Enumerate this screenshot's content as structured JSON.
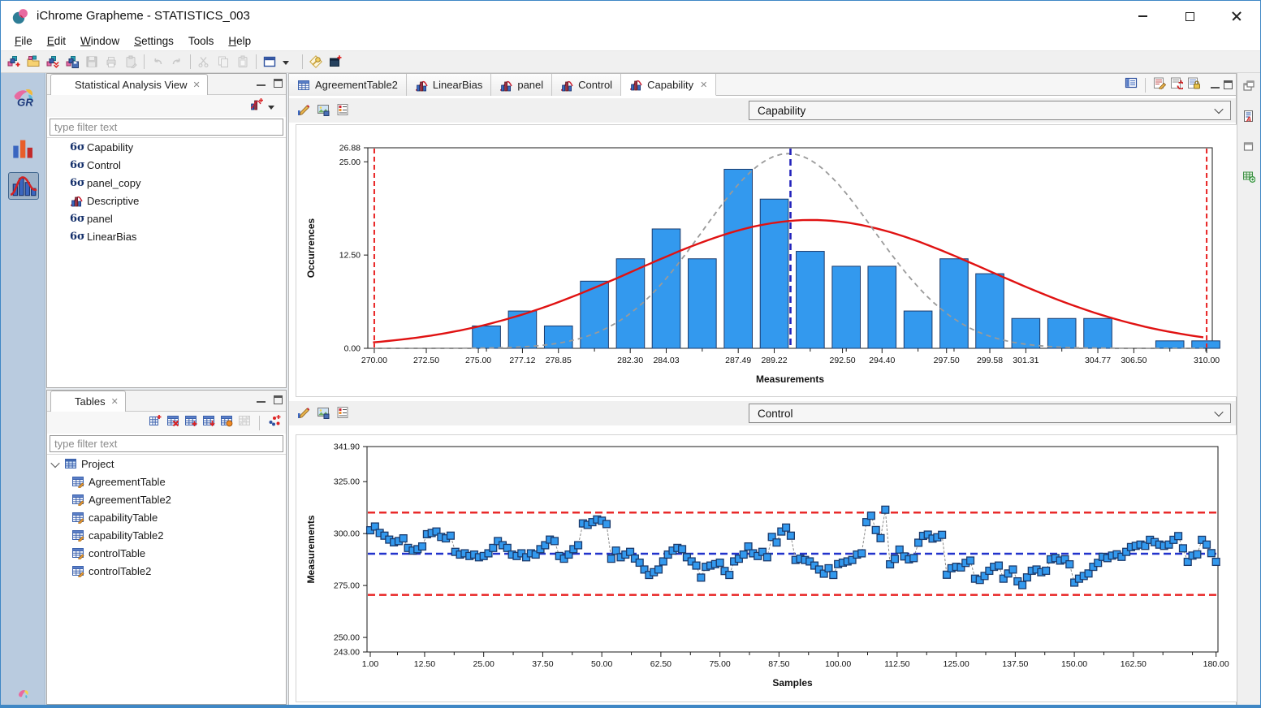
{
  "window": {
    "title": "iChrome Grapheme - STATISTICS_003"
  },
  "menu": {
    "items": [
      {
        "label": "File",
        "underline": 0
      },
      {
        "label": "Edit",
        "underline": 0
      },
      {
        "label": "Window",
        "underline": 0
      },
      {
        "label": "Settings",
        "underline": 0
      },
      {
        "label": "Tools",
        "underline": -1
      },
      {
        "label": "Help",
        "underline": 0
      }
    ]
  },
  "main_toolbar": {
    "groups": [
      [
        {
          "icon": "new-project-icon",
          "enabled": true
        },
        {
          "icon": "open-project-icon",
          "enabled": true
        },
        {
          "icon": "import-project-icon",
          "enabled": true
        },
        {
          "icon": "save-project-as-icon",
          "enabled": true
        },
        {
          "icon": "save-icon",
          "enabled": false
        },
        {
          "icon": "print-icon",
          "enabled": false
        },
        {
          "icon": "paste-template-icon",
          "enabled": false
        }
      ],
      [
        {
          "icon": "undo-icon",
          "enabled": false
        },
        {
          "icon": "redo-icon",
          "enabled": false
        }
      ],
      [
        {
          "icon": "cut-icon",
          "enabled": false
        },
        {
          "icon": "copy-icon",
          "enabled": false
        },
        {
          "icon": "paste-icon",
          "enabled": false
        }
      ],
      [
        {
          "icon": "window-layout-icon",
          "enabled": true
        },
        {
          "icon": "dropdown-arrow-icon",
          "enabled": true
        }
      ],
      [
        {
          "icon": "key-icon",
          "enabled": true
        },
        {
          "icon": "new-window-icon",
          "enabled": true
        }
      ]
    ]
  },
  "left_rail": {
    "logo_text": "GR",
    "tools": [
      {
        "icon": "grapheme-logo-icon",
        "selected": false
      },
      {
        "icon": "bar-chart-tool-icon",
        "selected": false
      },
      {
        "icon": "distribution-tool-icon",
        "selected": true
      }
    ],
    "bottom_icon": "grapheme-mini-icon"
  },
  "analysis_panel": {
    "title": "Statistical Analysis View",
    "close_glyph": "✕",
    "toolbar": [
      {
        "icon": "new-analysis-icon"
      },
      {
        "icon": "dropdown-arrow-icon"
      }
    ],
    "filter_placeholder": "type filter text",
    "items": [
      {
        "icon": "sixsigma-icon",
        "label": "Capability"
      },
      {
        "icon": "sixsigma-icon",
        "label": "Control"
      },
      {
        "icon": "sixsigma-icon",
        "label": "panel_copy"
      },
      {
        "icon": "histogram-icon",
        "label": "Descriptive"
      },
      {
        "icon": "sixsigma-icon",
        "label": "panel"
      },
      {
        "icon": "sixsigma-icon",
        "label": "LinearBias"
      }
    ]
  },
  "tables_panel": {
    "title": "Tables",
    "close_glyph": "✕",
    "toolbar": [
      {
        "icon": "add-table-icon",
        "enabled": true
      },
      {
        "icon": "delete-table-icon",
        "enabled": true
      },
      {
        "icon": "insert-table-icon",
        "enabled": true
      },
      {
        "icon": "import-table-icon",
        "enabled": true
      },
      {
        "icon": "derive-table-icon",
        "enabled": true
      },
      {
        "icon": "table-disabled-icon",
        "enabled": false
      },
      {
        "icon": "scatter-plot-icon",
        "enabled": true
      }
    ],
    "filter_placeholder": "type filter text",
    "root": {
      "icon": "project-icon",
      "label": "Project"
    },
    "children": [
      {
        "icon": "table-edit-icon",
        "label": "AgreementTable"
      },
      {
        "icon": "table-edit-icon",
        "label": "AgreementTable2"
      },
      {
        "icon": "table-edit-icon",
        "label": "capabilityTable"
      },
      {
        "icon": "table-edit-icon",
        "label": "capabilityTable2"
      },
      {
        "icon": "table-edit-icon",
        "label": "controlTable"
      },
      {
        "icon": "table-edit-icon",
        "label": "controlTable2"
      }
    ]
  },
  "editor": {
    "tabs": [
      {
        "icon": "table-icon",
        "label": "AgreementTable2",
        "active": false,
        "closable": false
      },
      {
        "icon": "histogram-icon",
        "label": "LinearBias",
        "active": false,
        "closable": false
      },
      {
        "icon": "histogram-icon",
        "label": "panel",
        "active": false,
        "closable": false
      },
      {
        "icon": "histogram-icon",
        "label": "Control",
        "active": false,
        "closable": false
      },
      {
        "icon": "histogram-icon",
        "label": "Capability",
        "active": true,
        "closable": true
      }
    ],
    "toolbar": [
      {
        "icon": "details-view-icon"
      },
      {
        "icon": "edit-analysis-icon"
      },
      {
        "icon": "refresh-analysis-icon"
      },
      {
        "icon": "lock-analysis-icon"
      }
    ]
  },
  "right_rail": {
    "icons": [
      "cascade-view-icon",
      "report-view-icon",
      "new-view-icon",
      "export-table-icon"
    ]
  },
  "sections": [
    {
      "selector_value": "Capability",
      "tools": [
        "edit-chart-icon",
        "export-image-icon",
        "chart-settings-icon"
      ]
    },
    {
      "selector_value": "Control",
      "tools": [
        "edit-chart-icon",
        "export-image-icon",
        "chart-settings-icon"
      ]
    }
  ],
  "chart_data": [
    {
      "type": "bar",
      "title": "Capability",
      "xlabel": "Measurements",
      "ylabel": "Occurrences",
      "xlim": [
        269.69,
        310.27
      ],
      "ylim": [
        0,
        26.88
      ],
      "grid": false,
      "bar_color": "#3399ee",
      "bar_edge_color": "#1b3a6b",
      "bin_width": 1.7286,
      "bar_width": 1.35,
      "bins": {
        "centers": [
          275.39,
          277.12,
          278.85,
          280.58,
          282.31,
          284.03,
          285.76,
          287.49,
          289.22,
          290.95,
          292.68,
          294.4,
          296.13,
          297.86,
          299.58,
          301.31,
          303.04,
          304.77,
          306.5,
          308.23,
          309.96
        ],
        "counts": [
          3,
          5,
          3,
          9,
          12,
          16,
          12,
          24,
          20,
          13,
          11,
          11,
          5,
          12,
          10,
          4,
          4,
          4,
          0,
          1,
          1
        ]
      },
      "normal_curves": [
        {
          "name": "overall-fit",
          "color": "#e01212",
          "style": "solid",
          "mean": 291.0,
          "sd": 8.5,
          "peak": 17.2
        },
        {
          "name": "within-fit",
          "color": "#9a9a9a",
          "style": "dashed",
          "mean": 289.9,
          "sd": 4.1,
          "peak": 26.1
        }
      ],
      "vlines": [
        {
          "name": "LSL",
          "x": 270.0,
          "color": "#e82222",
          "style": "dashed"
        },
        {
          "name": "USL",
          "x": 310.0,
          "color": "#e82222",
          "style": "dashed"
        },
        {
          "name": "mean",
          "x": 290.0,
          "color": "#2222bb",
          "style": "dashed"
        }
      ],
      "yticks": [
        {
          "v": 0,
          "label": "0.00"
        },
        {
          "v": 12.5,
          "label": "12.50"
        },
        {
          "v": 25,
          "label": "25.00"
        },
        {
          "v": 26.88,
          "label": "26.88"
        }
      ],
      "xticks": [
        {
          "v": 270,
          "label": "270.00"
        },
        {
          "v": 272.5,
          "label": "272.50"
        },
        {
          "v": 275,
          "label": "275.00"
        },
        {
          "v": 277.12,
          "label": "277.12"
        },
        {
          "v": 278.85,
          "label": "278.85"
        },
        {
          "v": 282.3,
          "label": "282.30"
        },
        {
          "v": 284.03,
          "label": "284.03"
        },
        {
          "v": 287.49,
          "label": "287.49"
        },
        {
          "v": 289.22,
          "label": "289.22"
        },
        {
          "v": 292.5,
          "label": "292.50"
        },
        {
          "v": 294.4,
          "label": "294.40"
        },
        {
          "v": 297.5,
          "label": "297.50"
        },
        {
          "v": 299.58,
          "label": "299.58"
        },
        {
          "v": 301.31,
          "label": "301.31"
        },
        {
          "v": 304.77,
          "label": "304.77"
        },
        {
          "v": 306.5,
          "label": "306.50"
        },
        {
          "v": 310.0,
          "label": "310.00"
        }
      ],
      "minor_xticks": [
        275.39,
        280.58,
        285.76,
        290.95,
        292.68,
        296.13,
        297.86,
        303.04,
        308.23,
        309.96
      ]
    },
    {
      "type": "line",
      "title": "Control",
      "xlabel": "Samples",
      "ylabel": "Measurements",
      "xlim": [
        0.31,
        180.4
      ],
      "ylim": [
        243.0,
        341.9
      ],
      "grid": false,
      "marker": "square",
      "marker_color": "#3399ee",
      "marker_edge_color": "#1b3a6b",
      "line_color": "#8a8a8a",
      "line_style": "dashed",
      "hlines": [
        {
          "name": "UCL",
          "y": 310.1,
          "color": "#e82222",
          "style": "dashed"
        },
        {
          "name": "center",
          "y": 290.3,
          "color": "#2233cc",
          "style": "dashed"
        },
        {
          "name": "LCL",
          "y": 270.5,
          "color": "#e82222",
          "style": "dashed"
        }
      ],
      "yticks": [
        {
          "v": 243,
          "label": "243.00"
        },
        {
          "v": 250,
          "label": "250.00"
        },
        {
          "v": 275,
          "label": "275.00"
        },
        {
          "v": 300,
          "label": "300.00"
        },
        {
          "v": 325,
          "label": "325.00"
        },
        {
          "v": 341.9,
          "label": "341.90"
        }
      ],
      "xticks": [
        {
          "v": 1,
          "label": "1.00"
        },
        {
          "v": 12.5,
          "label": "12.50"
        },
        {
          "v": 25,
          "label": "25.00"
        },
        {
          "v": 37.5,
          "label": "37.50"
        },
        {
          "v": 50,
          "label": "50.00"
        },
        {
          "v": 62.5,
          "label": "62.50"
        },
        {
          "v": 75,
          "label": "75.00"
        },
        {
          "v": 87.5,
          "label": "87.50"
        },
        {
          "v": 100,
          "label": "100.00"
        },
        {
          "v": 112.5,
          "label": "112.50"
        },
        {
          "v": 125,
          "label": "125.00"
        },
        {
          "v": 137.5,
          "label": "137.50"
        },
        {
          "v": 150,
          "label": "150.00"
        },
        {
          "v": 162.5,
          "label": "162.50"
        },
        {
          "v": 180,
          "label": "180.00"
        }
      ],
      "minor_xticks": [
        6.75,
        18.75,
        31.25,
        43.75,
        56.25,
        68.75,
        81.25,
        93.75,
        106.25,
        118.75,
        131.25,
        143.75,
        156.25,
        168.75,
        175
      ],
      "x_start": 1,
      "values": [
        301.6,
        303.4,
        300.3,
        299.0,
        297.1,
        295.8,
        296.4,
        297.7,
        293.1,
        291.8,
        292.5,
        293.8,
        299.7,
        300.3,
        301.0,
        298.4,
        297.7,
        299.0,
        291.2,
        289.9,
        290.5,
        289.2,
        289.9,
        288.6,
        289.2,
        290.5,
        293.1,
        296.4,
        294.4,
        293.1,
        289.9,
        289.2,
        290.5,
        288.6,
        290.5,
        289.9,
        292.5,
        294.4,
        297.1,
        296.4,
        289.2,
        287.9,
        289.9,
        292.5,
        294.4,
        304.9,
        304.2,
        305.5,
        306.8,
        306.2,
        304.6,
        287.9,
        291.8,
        288.6,
        289.9,
        291.2,
        288.0,
        286.0,
        282.7,
        280.1,
        281.4,
        282.7,
        286.6,
        289.9,
        291.8,
        293.1,
        292.5,
        288.6,
        286.6,
        284.6,
        278.8,
        284.0,
        284.6,
        285.3,
        286.0,
        282.0,
        280.1,
        286.6,
        287.9,
        289.9,
        293.8,
        290.5,
        289.2,
        291.2,
        288.6,
        298.4,
        295.7,
        301.0,
        302.9,
        299.0,
        287.3,
        287.9,
        287.3,
        286.6,
        284.6,
        282.7,
        280.7,
        283.3,
        280.1,
        285.3,
        286.0,
        286.6,
        287.3,
        289.9,
        290.5,
        305.5,
        308.6,
        301.7,
        297.8,
        311.5,
        285.2,
        287.8,
        292.3,
        289.0,
        287.6,
        288.2,
        295.6,
        298.9,
        299.5,
        297.6,
        298.2,
        299.4,
        280.2,
        283.3,
        284.0,
        283.7,
        285.9,
        287.0,
        278.3,
        277.7,
        279.6,
        282.1,
        284.0,
        284.6,
        278.3,
        280.8,
        282.7,
        277.0,
        275.2,
        278.9,
        282.1,
        282.7,
        281.4,
        282.1,
        287.6,
        288.2,
        287.0,
        287.6,
        285.2,
        276.4,
        278.3,
        279.6,
        280.8,
        284.0,
        285.9,
        288.8,
        288.2,
        289.4,
        290.0,
        288.8,
        291.2,
        293.5,
        294.1,
        294.7,
        294.1,
        297.0,
        295.9,
        294.7,
        294.1,
        294.7,
        297.0,
        298.8,
        292.9,
        286.4,
        289.4,
        290.0,
        297.0,
        294.7,
        290.6,
        286.4
      ]
    }
  ]
}
